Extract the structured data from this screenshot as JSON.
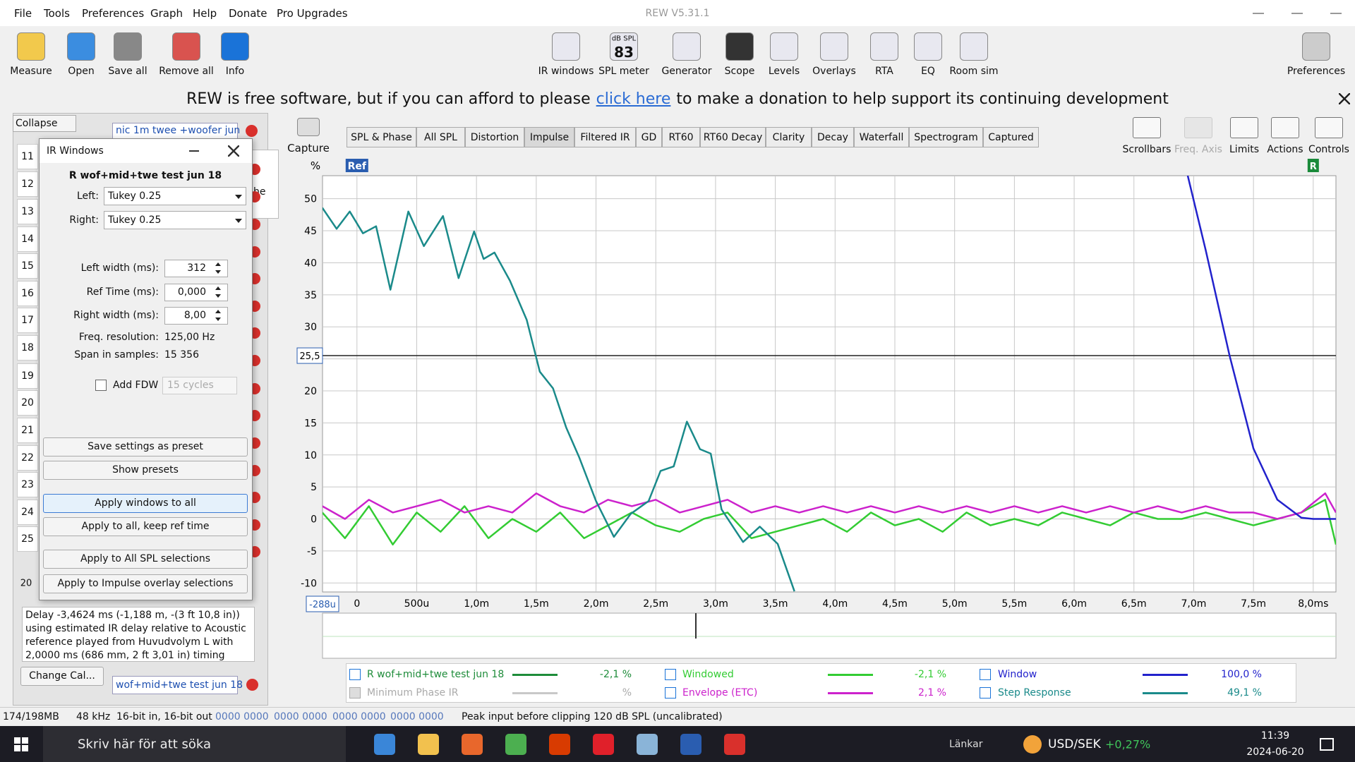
{
  "window": {
    "title": "REW V5.31.1",
    "menu": [
      "File",
      "Tools",
      "Preferences",
      "Graph",
      "Help",
      "Donate",
      "Pro Upgrades"
    ]
  },
  "toolbar": {
    "left": [
      "Measure",
      "Open",
      "Save all",
      "Remove all",
      "Info"
    ],
    "center": [
      "IR windows",
      "SPL meter",
      "Generator",
      "Scope",
      "Levels",
      "Overlays",
      "RTA",
      "EQ",
      "Room sim"
    ],
    "right": [
      "Preferences"
    ],
    "spl_badge": {
      "unit": "dB SPL",
      "reading": 83
    }
  },
  "banner": {
    "before": "REW is free software, but if you can afford to please",
    "link": "click here",
    "after": "to make a donation to help support its continuing development"
  },
  "measurements": {
    "collapse": "Collapse",
    "top_name": "nic 1m twee +woofer jun",
    "peek_text": "he",
    "rows": [
      11,
      12,
      13,
      14,
      15,
      16,
      17,
      18,
      19,
      20,
      21,
      22,
      23,
      24,
      25
    ],
    "partial_row": 20,
    "notes": "Delay -3,4624 ms (-1,188 m, -(3 ft 10,8 in)) using estimated IR delay relative to Acoustic reference played from Huvudvolym L with 2,0000 ms (686 mm, 2 ft 3,01 in) timing offset",
    "change_cal": "Change Cal...",
    "bottom_name": "wof+mid+twe test jun 18"
  },
  "ir_windows": {
    "title": "IR Windows",
    "measurement": "R wof+mid+twe test jun 18",
    "selects": [
      {
        "label": "Left:",
        "value": "Tukey 0.25"
      },
      {
        "label": "Right:",
        "value": "Tukey 0.25"
      }
    ],
    "fields": [
      {
        "label": "Left width (ms):",
        "value": 312
      },
      {
        "label": "Ref Time (ms):",
        "value": "0,000"
      },
      {
        "label": "Right width (ms):",
        "value": "8,00"
      }
    ],
    "info": [
      {
        "label": "Freq. resolution:",
        "value": "125,00 Hz"
      },
      {
        "label": "Span in samples:",
        "value": "15 356"
      }
    ],
    "fdw": {
      "label": "Add FDW",
      "checked": false,
      "cycles": "15 cycles"
    },
    "buttons": [
      "Save settings as preset",
      "Show presets",
      "Apply windows to all",
      "Apply to all, keep ref time",
      "Apply to All SPL selections",
      "Apply to Impulse overlay selections"
    ]
  },
  "graph": {
    "capture": "Capture",
    "tabs": [
      "SPL & Phase",
      "All SPL",
      "Distortion",
      "Impulse",
      "Filtered IR",
      "GD",
      "RT60",
      "RT60 Decay",
      "Clarity",
      "Decay",
      "Waterfall",
      "Spectrogram",
      "Captured"
    ],
    "active_tab": 3,
    "tools": [
      "Scrollbars",
      "Freq. Axis",
      "Limits",
      "Actions",
      "Controls"
    ],
    "y_unit": "%",
    "ref_marker": "Ref",
    "right_marker": "R",
    "cursor_y": {
      "value": 25.5,
      "label": "25,5"
    },
    "cursor_x": {
      "value": -0.288,
      "label": "-288u"
    },
    "xlim": [
      -0.288,
      8.19
    ],
    "ylim": [
      -11.4,
      53.6
    ],
    "xticks": [
      0,
      {
        "value": 0.5,
        "label": "500u"
      },
      {
        "value": 1,
        "label": "1,0m"
      },
      {
        "value": 1.5,
        "label": "1,5m"
      },
      {
        "value": 2,
        "label": "2,0m"
      },
      {
        "value": 2.5,
        "label": "2,5m"
      },
      {
        "value": 3,
        "label": "3,0m"
      },
      {
        "value": 3.5,
        "label": "3,5m"
      },
      {
        "value": 4,
        "label": "4,0m"
      },
      {
        "value": 4.5,
        "label": "4,5m"
      },
      {
        "value": 5,
        "label": "5,0m"
      },
      {
        "value": 5.5,
        "label": "5,5m"
      },
      {
        "value": 6,
        "label": "6,0m"
      },
      {
        "value": 6.5,
        "label": "6,5m"
      },
      {
        "value": 7,
        "label": "7,0m"
      },
      {
        "value": 7.5,
        "label": "7,5m"
      },
      {
        "value": 8,
        "label": "8,0ms"
      }
    ],
    "yticks": [
      -10,
      -5,
      0,
      5,
      10,
      15,
      20,
      25,
      30,
      35,
      40,
      45,
      50
    ],
    "grid": true,
    "noise_x": [
      -0.29,
      -0.1,
      0.1,
      0.3,
      0.5,
      0.7,
      0.9,
      1.1,
      1.3,
      1.5,
      1.7,
      1.9,
      2.1,
      2.3,
      2.5,
      2.7,
      2.9,
      3.1,
      3.3,
      3.5,
      3.7,
      3.9,
      4.1,
      4.3,
      4.5,
      4.7,
      4.9,
      5.1,
      5.3,
      5.5,
      5.7,
      5.9,
      6.1,
      6.3,
      6.5,
      6.7,
      6.9,
      7.1,
      7.3,
      7.5,
      7.7,
      7.9,
      8.1,
      8.19
    ],
    "series": [
      {
        "name": "R wof+mid+twe test jun 18",
        "color": "#1e8c3a",
        "reading": "-2,1 %",
        "checked": true
      },
      {
        "name": "Minimum Phase IR",
        "color": "#c8c8c8",
        "reading": "%",
        "checked": true
      },
      {
        "name": "Windowed",
        "color": "#33cc33",
        "reading": "-2,1 %",
        "checked": true,
        "values": [
          1,
          -3,
          2,
          -4,
          1,
          -2,
          2,
          -3,
          0,
          -2,
          1,
          -3,
          -1,
          1,
          -1,
          -2,
          0,
          1,
          -3,
          -2,
          -1,
          0,
          -2,
          1,
          -1,
          0,
          -2,
          1,
          -1,
          0,
          -1,
          1,
          0,
          -1,
          1,
          0,
          0,
          1,
          0,
          -1,
          0,
          1,
          3,
          -4
        ]
      },
      {
        "name": "Envelope (ETC)",
        "color": "#cc22cc",
        "reading": "2,1 %",
        "checked": true,
        "values": [
          2,
          0,
          3,
          1,
          2,
          3,
          1,
          2,
          1,
          4,
          2,
          1,
          3,
          2,
          3,
          1,
          2,
          3,
          1,
          2,
          1,
          2,
          1,
          2,
          1,
          2,
          1,
          2,
          1,
          2,
          1,
          2,
          1,
          2,
          1,
          2,
          1,
          2,
          1,
          1,
          0,
          1,
          4,
          1
        ]
      },
      {
        "name": "Window",
        "color": "#2222cc",
        "reading": "100,0 %",
        "checked": true,
        "x": [
          6.95,
          7.1,
          7.3,
          7.5,
          7.7,
          7.9,
          8.0,
          8.19
        ],
        "values": [
          53.6,
          42,
          25.5,
          11,
          3,
          0.2,
          0,
          0
        ]
      },
      {
        "name": "Step Response",
        "color": "#1a8a8a",
        "reading": "49,1 %",
        "checked": true,
        "x": [
          -0.29,
          -0.17,
          -0.06,
          0.05,
          0.16,
          0.28,
          0.43,
          0.56,
          0.72,
          0.85,
          0.98,
          1.06,
          1.15,
          1.28,
          1.42,
          1.53,
          1.64,
          1.75,
          1.86,
          2.0,
          2.15,
          2.29,
          2.44,
          2.54,
          2.65,
          2.76,
          2.87,
          2.96,
          3.05,
          3.23,
          3.37,
          3.52,
          3.66
        ],
        "values": [
          48.6,
          45.3,
          48,
          44.6,
          45.7,
          35.8,
          48,
          42.6,
          47.3,
          37.6,
          44.9,
          40.6,
          41.6,
          37.2,
          31.1,
          23,
          20.4,
          14.3,
          9.6,
          2.8,
          -2.8,
          0.8,
          2.8,
          7.5,
          8.2,
          15.2,
          10.9,
          10.2,
          1.5,
          -3.6,
          -1.2,
          -3.9,
          -11.3
        ]
      }
    ]
  },
  "status": [
    "174/198MB",
    "48 kHz",
    "16-bit in, 16-bit out",
    "0000 0000",
    "0000 0000",
    "0000 0000",
    "0000 0000",
    "Peak input before clipping 120 dB SPL (uncalibrated)"
  ],
  "taskbar": {
    "search": "Skriv här för att söka",
    "links": "Länkar",
    "ticker": "USD/SEK",
    "change": "+0,27%",
    "time": "11:39",
    "date": "2024-06-20"
  }
}
